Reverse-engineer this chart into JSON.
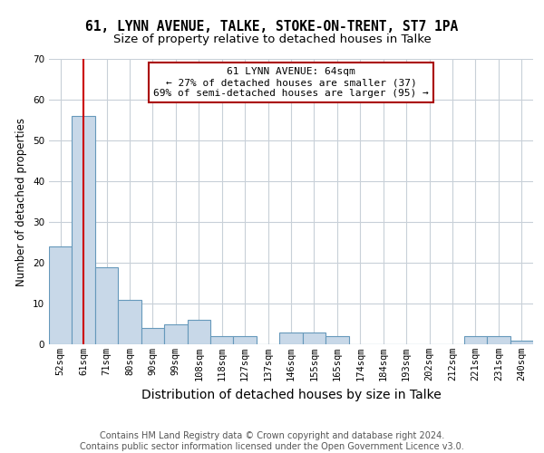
{
  "title1": "61, LYNN AVENUE, TALKE, STOKE-ON-TRENT, ST7 1PA",
  "title2": "Size of property relative to detached houses in Talke",
  "xlabel": "Distribution of detached houses by size in Talke",
  "ylabel": "Number of detached properties",
  "categories": [
    "52sqm",
    "61sqm",
    "71sqm",
    "80sqm",
    "90sqm",
    "99sqm",
    "108sqm",
    "118sqm",
    "127sqm",
    "137sqm",
    "146sqm",
    "155sqm",
    "165sqm",
    "174sqm",
    "184sqm",
    "193sqm",
    "202sqm",
    "212sqm",
    "221sqm",
    "231sqm",
    "240sqm"
  ],
  "values": [
    24,
    56,
    19,
    11,
    4,
    5,
    6,
    2,
    2,
    0,
    3,
    3,
    2,
    0,
    0,
    0,
    0,
    0,
    2,
    2,
    1
  ],
  "bar_color": "#c8d8e8",
  "bar_edge_color": "#6699bb",
  "bar_edge_width": 0.8,
  "ylim": [
    0,
    70
  ],
  "yticks": [
    0,
    10,
    20,
    30,
    40,
    50,
    60,
    70
  ],
  "red_line_index": 1,
  "red_line_color": "#cc0000",
  "annotation_text": "61 LYNN AVENUE: 64sqm\n← 27% of detached houses are smaller (37)\n69% of semi-detached houses are larger (95) →",
  "annotation_box_color": "#aa0000",
  "footnote": "Contains HM Land Registry data © Crown copyright and database right 2024.\nContains public sector information licensed under the Open Government Licence v3.0.",
  "title1_fontsize": 10.5,
  "title2_fontsize": 9.5,
  "xlabel_fontsize": 10,
  "ylabel_fontsize": 8.5,
  "tick_fontsize": 7.5,
  "annotation_fontsize": 8,
  "footnote_fontsize": 7,
  "background_color": "#ffffff",
  "grid_color": "#c8d0d8"
}
